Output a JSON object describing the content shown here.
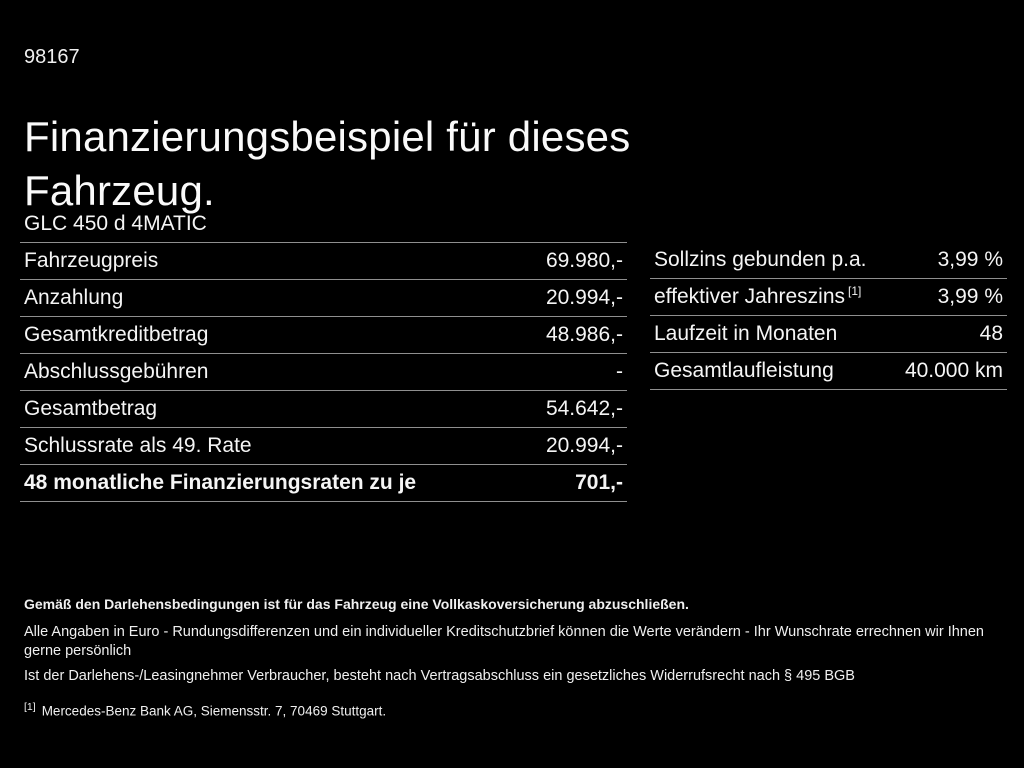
{
  "page": {
    "doc_number": "98167",
    "title": "Finanzierungsbeispiel für dieses Fahrzeug.",
    "vehicle_model": "GLC 450 d 4MATIC"
  },
  "colors": {
    "background": "#000000",
    "text": "#f5f5f5",
    "divider": "#8f8f8f"
  },
  "finance_table": {
    "rows": [
      {
        "label": "Fahrzeugpreis",
        "value": "69.980,-"
      },
      {
        "label": "Anzahlung",
        "value": "20.994,-"
      },
      {
        "label": "Gesamtkreditbetrag",
        "value": "48.986,-"
      },
      {
        "label": "Abschlussgebühren",
        "value": "-"
      },
      {
        "label": "Gesamtbetrag",
        "value": "54.642,-"
      },
      {
        "label": "Schlussrate als 49. Rate",
        "value": "20.994,-"
      },
      {
        "label": "48 monatliche Finanzierungsraten zu je",
        "value": "701,-"
      }
    ]
  },
  "conditions_table": {
    "rows": [
      {
        "label": "Sollzins gebunden p.a.",
        "value": "3,99 %"
      },
      {
        "label": "effektiver Jahreszins",
        "footnote_marker": "[1]",
        "value": "3,99 %"
      },
      {
        "label": "Laufzeit in Monaten",
        "value": "48"
      },
      {
        "label": "Gesamtlaufleistung",
        "value": "40.000 km"
      }
    ]
  },
  "footer": {
    "insurance_note": "Gemäß den Darlehensbedingungen ist für das Fahrzeug eine Vollkaskoversicherung abzuschließen.",
    "disclaimer_line1": "Alle Angaben in Euro - Rundungsdifferenzen und ein individueller Kreditschutzbrief können die Werte verändern - Ihr Wunschrate errechnen wir Ihnen gerne persönlich",
    "disclaimer_line2": "Ist der Darlehens-/Leasingnehmer Verbraucher, besteht nach Vertragsabschluss ein gesetzliches Widerrufsrecht nach § 495 BGB",
    "footnote_marker": "[1]",
    "footnote_text": "Mercedes-Benz Bank AG, Siemensstr. 7, 70469 Stuttgart."
  }
}
